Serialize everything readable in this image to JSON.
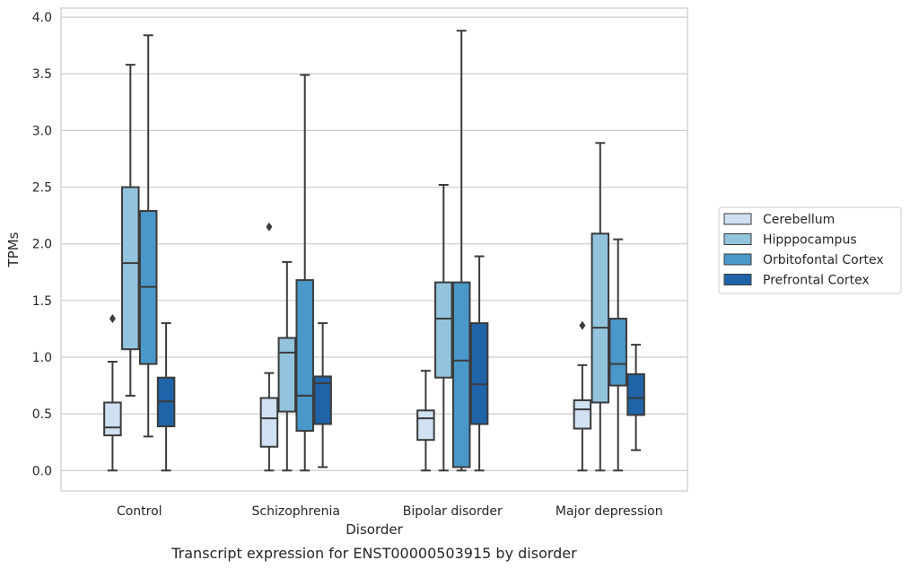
{
  "chart_data": {
    "type": "box",
    "title": "",
    "caption": "Transcript expression for ENST00000503915 by disorder",
    "xlabel": "Disorder",
    "ylabel": "TPMs",
    "ylim": [
      -0.18,
      4.08
    ],
    "yticks": [
      "0.0",
      "0.5",
      "1.0",
      "1.5",
      "2.0",
      "2.5",
      "3.0",
      "3.5",
      "4.0"
    ],
    "categories": [
      "Control",
      "Schizophrenia",
      "Bipolar disorder",
      "Major depression"
    ],
    "grid": "horizontal",
    "legend_position": "right",
    "series": [
      {
        "name": "Cerebellum",
        "color": "#cfe1f2",
        "boxes": [
          {
            "q1": 0.31,
            "median": 0.38,
            "q3": 0.6,
            "whislo": 0.0,
            "whishi": 0.96,
            "fliers": [
              1.34
            ]
          },
          {
            "q1": 0.21,
            "median": 0.46,
            "q3": 0.64,
            "whislo": 0.0,
            "whishi": 0.86,
            "fliers": [
              2.15
            ]
          },
          {
            "q1": 0.27,
            "median": 0.46,
            "q3": 0.53,
            "whislo": 0.0,
            "whishi": 0.88,
            "fliers": []
          },
          {
            "q1": 0.37,
            "median": 0.54,
            "q3": 0.62,
            "whislo": 0.0,
            "whishi": 0.93,
            "fliers": [
              1.28
            ]
          }
        ]
      },
      {
        "name": "Hipppocampus",
        "color": "#93c4de",
        "boxes": [
          {
            "q1": 1.07,
            "median": 1.83,
            "q3": 2.5,
            "whislo": 0.66,
            "whishi": 3.58,
            "fliers": []
          },
          {
            "q1": 0.52,
            "median": 1.04,
            "q3": 1.17,
            "whislo": 0.0,
            "whishi": 1.84,
            "fliers": []
          },
          {
            "q1": 0.82,
            "median": 1.34,
            "q3": 1.66,
            "whislo": 0.0,
            "whishi": 2.52,
            "fliers": []
          },
          {
            "q1": 0.6,
            "median": 1.26,
            "q3": 2.09,
            "whislo": 0.0,
            "whishi": 2.89,
            "fliers": []
          }
        ]
      },
      {
        "name": "Orbitofontal Cortex",
        "color": "#4a98c9",
        "boxes": [
          {
            "q1": 0.94,
            "median": 1.62,
            "q3": 2.29,
            "whislo": 0.3,
            "whishi": 3.84,
            "fliers": []
          },
          {
            "q1": 0.35,
            "median": 0.66,
            "q3": 1.68,
            "whislo": 0.0,
            "whishi": 3.49,
            "fliers": []
          },
          {
            "q1": 0.03,
            "median": 0.97,
            "q3": 1.66,
            "whislo": 0.0,
            "whishi": 3.88,
            "fliers": []
          },
          {
            "q1": 0.75,
            "median": 0.94,
            "q3": 1.34,
            "whislo": 0.0,
            "whishi": 2.04,
            "fliers": []
          }
        ]
      },
      {
        "name": "Prefrontal Cortex",
        "color": "#1f64a8",
        "boxes": [
          {
            "q1": 0.39,
            "median": 0.61,
            "q3": 0.82,
            "whislo": 0.0,
            "whishi": 1.3,
            "fliers": []
          },
          {
            "q1": 0.41,
            "median": 0.77,
            "q3": 0.83,
            "whislo": 0.03,
            "whishi": 1.3,
            "fliers": []
          },
          {
            "q1": 0.41,
            "median": 0.76,
            "q3": 1.3,
            "whislo": 0.0,
            "whishi": 1.89,
            "fliers": []
          },
          {
            "q1": 0.49,
            "median": 0.64,
            "q3": 0.85,
            "whislo": 0.18,
            "whishi": 1.11,
            "fliers": []
          }
        ]
      }
    ]
  }
}
